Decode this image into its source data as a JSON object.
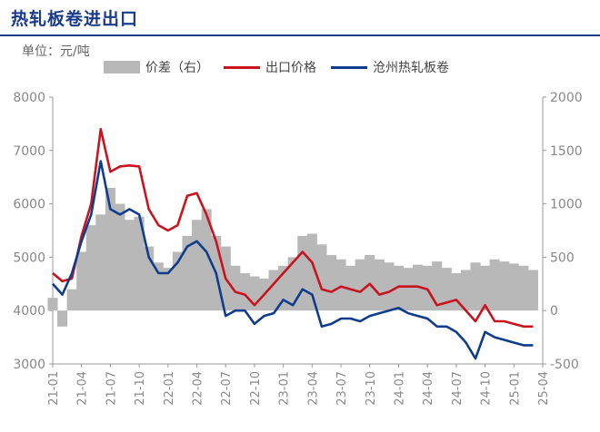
{
  "chart_data": {
    "type": "line",
    "title": "热轧板卷进出口",
    "unit": "单位：元/吨",
    "x_categories": [
      "21-01",
      "21-04",
      "21-07",
      "21-10",
      "22-01",
      "22-04",
      "22-07",
      "22-10",
      "23-01",
      "23-04",
      "23-07",
      "23-10",
      "24-01",
      "24-04",
      "24-07",
      "24-10",
      "25-01",
      "25-04"
    ],
    "y_left": {
      "min": 3000,
      "max": 8000,
      "ticks": [
        3000,
        4000,
        5000,
        6000,
        7000,
        8000
      ]
    },
    "y_right": {
      "min": -500,
      "max": 2000,
      "ticks": [
        -500,
        0,
        500,
        1000,
        1500,
        2000
      ]
    },
    "grid": false,
    "legend_position": "top",
    "series": [
      {
        "name": "价差（右）",
        "kind": "area",
        "axis": "right",
        "color": "#b8b8b8",
        "x": [
          "2021-01",
          "2021-02",
          "2021-03",
          "2021-04",
          "2021-05",
          "2021-06",
          "2021-07",
          "2021-08",
          "2021-09",
          "2021-10",
          "2021-11",
          "2021-12",
          "2022-01",
          "2022-02",
          "2022-03",
          "2022-04",
          "2022-05",
          "2022-06",
          "2022-07",
          "2022-08",
          "2022-09",
          "2022-10",
          "2022-11",
          "2022-12",
          "2023-01",
          "2023-02",
          "2023-03",
          "2023-04",
          "2023-05",
          "2023-06",
          "2023-07",
          "2023-08",
          "2023-09",
          "2023-10",
          "2023-11",
          "2023-12",
          "2024-01",
          "2024-02",
          "2024-03",
          "2024-04",
          "2024-05",
          "2024-06",
          "2024-07",
          "2024-08",
          "2024-09",
          "2024-10",
          "2024-11",
          "2024-12",
          "2025-01",
          "2025-02",
          "2025-03"
        ],
        "values": [
          120,
          -150,
          200,
          550,
          800,
          900,
          1150,
          1000,
          850,
          880,
          600,
          450,
          400,
          550,
          700,
          850,
          950,
          700,
          600,
          420,
          350,
          320,
          300,
          380,
          420,
          500,
          700,
          720,
          620,
          520,
          480,
          420,
          480,
          520,
          480,
          450,
          420,
          400,
          430,
          420,
          460,
          400,
          350,
          380,
          450,
          420,
          480,
          460,
          440,
          420,
          380
        ]
      },
      {
        "name": "出口价格",
        "kind": "line",
        "axis": "left",
        "color": "#c8141e",
        "x": [
          "2021-01",
          "2021-02",
          "2021-03",
          "2021-04",
          "2021-05",
          "2021-06",
          "2021-07",
          "2021-08",
          "2021-09",
          "2021-10",
          "2021-11",
          "2021-12",
          "2022-01",
          "2022-02",
          "2022-03",
          "2022-04",
          "2022-05",
          "2022-06",
          "2022-07",
          "2022-08",
          "2022-09",
          "2022-10",
          "2022-11",
          "2022-12",
          "2023-01",
          "2023-02",
          "2023-03",
          "2023-04",
          "2023-05",
          "2023-06",
          "2023-07",
          "2023-08",
          "2023-09",
          "2023-10",
          "2023-11",
          "2023-12",
          "2024-01",
          "2024-02",
          "2024-03",
          "2024-04",
          "2024-05",
          "2024-06",
          "2024-07",
          "2024-08",
          "2024-09",
          "2024-10",
          "2024-11",
          "2024-12",
          "2025-01",
          "2025-02",
          "2025-03"
        ],
        "values": [
          4700,
          4550,
          4600,
          5400,
          6000,
          7400,
          6600,
          6700,
          6720,
          6700,
          5900,
          5600,
          5500,
          5600,
          6150,
          6200,
          5800,
          5300,
          4600,
          4350,
          4300,
          4100,
          4300,
          4500,
          4700,
          4900,
          5100,
          4900,
          4400,
          4350,
          4450,
          4400,
          4350,
          4500,
          4300,
          4350,
          4450,
          4450,
          4450,
          4400,
          4100,
          4150,
          4200,
          4000,
          3800,
          4100,
          3800,
          3800,
          3750,
          3700,
          3700
        ]
      },
      {
        "name": "沧州热轧板卷",
        "kind": "line",
        "axis": "left",
        "color": "#103c8c",
        "x": [
          "2021-01",
          "2021-02",
          "2021-03",
          "2021-04",
          "2021-05",
          "2021-06",
          "2021-07",
          "2021-08",
          "2021-09",
          "2021-10",
          "2021-11",
          "2021-12",
          "2022-01",
          "2022-02",
          "2022-03",
          "2022-04",
          "2022-05",
          "2022-06",
          "2022-07",
          "2022-08",
          "2022-09",
          "2022-10",
          "2022-11",
          "2022-12",
          "2023-01",
          "2023-02",
          "2023-03",
          "2023-04",
          "2023-05",
          "2023-06",
          "2023-07",
          "2023-08",
          "2023-09",
          "2023-10",
          "2023-11",
          "2023-12",
          "2024-01",
          "2024-02",
          "2024-03",
          "2024-04",
          "2024-05",
          "2024-06",
          "2024-07",
          "2024-08",
          "2024-09",
          "2024-10",
          "2024-11",
          "2024-12",
          "2025-01",
          "2025-02",
          "2025-03"
        ],
        "values": [
          4500,
          4300,
          4700,
          5300,
          5800,
          6800,
          5900,
          5800,
          5900,
          5800,
          5000,
          4700,
          4700,
          4900,
          5200,
          5300,
          5100,
          4700,
          3900,
          4000,
          4000,
          3750,
          3900,
          3950,
          4200,
          4100,
          4400,
          4300,
          3700,
          3750,
          3850,
          3850,
          3800,
          3900,
          3950,
          4000,
          4050,
          3950,
          3900,
          3850,
          3700,
          3700,
          3600,
          3400,
          3100,
          3600,
          3500,
          3450,
          3400,
          3350,
          3350
        ]
      }
    ]
  }
}
